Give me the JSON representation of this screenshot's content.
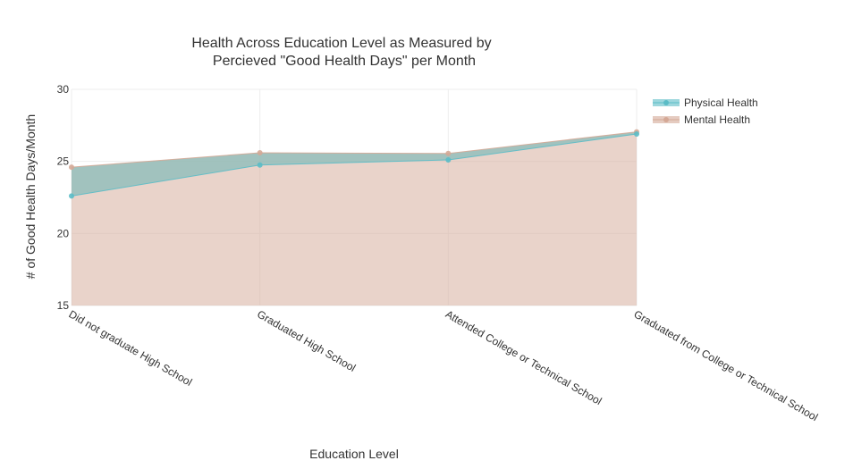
{
  "chart_data": {
    "type": "area",
    "title_lines": [
      "Health Across Education Level as Measured by",
      "Percieved \"Good Health Days\" per Month"
    ],
    "xlabel": "Education Level",
    "ylabel": "# of Good Health Days/Month",
    "categories": [
      "Did not graduate High School",
      "Graduated High School",
      "Attended College or Technical School",
      "Graduated from College or Technical School"
    ],
    "ylim": [
      15,
      30
    ],
    "yticks": [
      "15",
      "20",
      "25",
      "30"
    ],
    "grid": true,
    "legend_position": "top-right",
    "series": [
      {
        "name": "Physical Health",
        "values": [
          22.6,
          24.75,
          25.1,
          26.9
        ],
        "color": "#5bbcc6"
      },
      {
        "name": "Mental Health",
        "values": [
          24.6,
          25.6,
          25.55,
          27.05
        ],
        "color": "#d4a896"
      }
    ]
  }
}
